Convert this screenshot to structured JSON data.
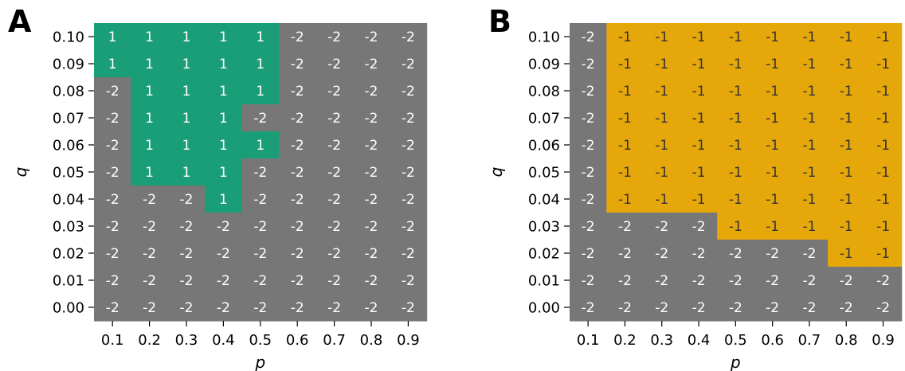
{
  "chart_data": [
    {
      "panel_label": "A",
      "type": "heatmap",
      "xlabel": "p",
      "ylabel": "q",
      "x_categories": [
        "0.1",
        "0.2",
        "0.3",
        "0.4",
        "0.5",
        "0.6",
        "0.7",
        "0.8",
        "0.9"
      ],
      "y_categories": [
        "0.10",
        "0.09",
        "0.08",
        "0.07",
        "0.06",
        "0.05",
        "0.04",
        "0.03",
        "0.02",
        "0.01",
        "0.00"
      ],
      "values": [
        [
          1,
          1,
          1,
          1,
          1,
          -2,
          -2,
          -2,
          -2
        ],
        [
          1,
          1,
          1,
          1,
          1,
          -2,
          -2,
          -2,
          -2
        ],
        [
          -2,
          1,
          1,
          1,
          1,
          -2,
          -2,
          -2,
          -2
        ],
        [
          -2,
          1,
          1,
          1,
          -2,
          -2,
          -2,
          -2,
          -2
        ],
        [
          -2,
          1,
          1,
          1,
          1,
          -2,
          -2,
          -2,
          -2
        ],
        [
          -2,
          1,
          1,
          1,
          -2,
          -2,
          -2,
          -2,
          -2
        ],
        [
          -2,
          -2,
          -2,
          1,
          -2,
          -2,
          -2,
          -2,
          -2
        ],
        [
          -2,
          -2,
          -2,
          -2,
          -2,
          -2,
          -2,
          -2,
          -2
        ],
        [
          -2,
          -2,
          -2,
          -2,
          -2,
          -2,
          -2,
          -2,
          -2
        ],
        [
          -2,
          -2,
          -2,
          -2,
          -2,
          -2,
          -2,
          -2,
          -2
        ],
        [
          -2,
          -2,
          -2,
          -2,
          -2,
          -2,
          -2,
          -2,
          -2
        ]
      ],
      "colors": {
        "1": "#1a9e77",
        "-2": "#777777"
      },
      "text_colors": {
        "1": "#ffffff",
        "-2": "#ffffff"
      }
    },
    {
      "panel_label": "B",
      "type": "heatmap",
      "xlabel": "p",
      "ylabel": "q",
      "x_categories": [
        "0.1",
        "0.2",
        "0.3",
        "0.4",
        "0.5",
        "0.6",
        "0.7",
        "0.8",
        "0.9"
      ],
      "y_categories": [
        "0.10",
        "0.09",
        "0.08",
        "0.07",
        "0.06",
        "0.05",
        "0.04",
        "0.03",
        "0.02",
        "0.01",
        "0.00"
      ],
      "values": [
        [
          -2,
          -1,
          -1,
          -1,
          -1,
          -1,
          -1,
          -1,
          -1
        ],
        [
          -2,
          -1,
          -1,
          -1,
          -1,
          -1,
          -1,
          -1,
          -1
        ],
        [
          -2,
          -1,
          -1,
          -1,
          -1,
          -1,
          -1,
          -1,
          -1
        ],
        [
          -2,
          -1,
          -1,
          -1,
          -1,
          -1,
          -1,
          -1,
          -1
        ],
        [
          -2,
          -1,
          -1,
          -1,
          -1,
          -1,
          -1,
          -1,
          -1
        ],
        [
          -2,
          -1,
          -1,
          -1,
          -1,
          -1,
          -1,
          -1,
          -1
        ],
        [
          -2,
          -1,
          -1,
          -1,
          -1,
          -1,
          -1,
          -1,
          -1
        ],
        [
          -2,
          -2,
          -2,
          -2,
          -1,
          -1,
          -1,
          -1,
          -1
        ],
        [
          -2,
          -2,
          -2,
          -2,
          -2,
          -2,
          -2,
          -1,
          -1
        ],
        [
          -2,
          -2,
          -2,
          -2,
          -2,
          -2,
          -2,
          -2,
          -2
        ],
        [
          -2,
          -2,
          -2,
          -2,
          -2,
          -2,
          -2,
          -2,
          -2
        ]
      ],
      "colors": {
        "-1": "#e6a70a",
        "-2": "#777777"
      },
      "text_colors": {
        "-1": "#333333",
        "-2": "#ffffff"
      }
    }
  ]
}
